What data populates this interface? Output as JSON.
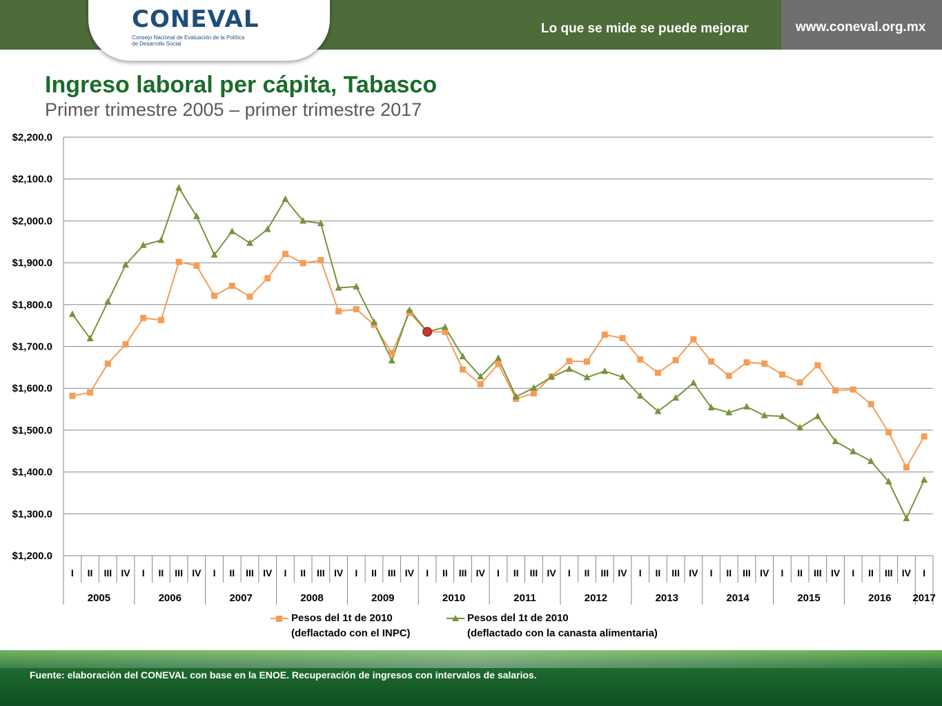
{
  "header": {
    "logo_text": "CONEVAL",
    "logo_subtitle": "Consejo Nacional de Evaluación de la Política de Desarrollo Social",
    "tagline": "Lo que se mide se puede mejorar",
    "url": "www.coneval.org.mx",
    "colors": {
      "bar": "#4e6b3a",
      "bar_right": "#6f6f6f",
      "logo": "#1f4e79"
    }
  },
  "title": "Ingreso laboral per cápita, Tabasco",
  "subtitle": "Primer trimestre 2005 – primer trimestre 2017",
  "footer": {
    "source": "Fuente: elaboración del CONEVAL con base en la ENOE. Recuperación de ingresos con intervalos de salarios."
  },
  "chart_data": {
    "type": "line",
    "ylim": [
      1200,
      2200
    ],
    "y_ticks": [
      "$1,200.0",
      "$1,300.0",
      "$1,400.0",
      "$1,500.0",
      "$1,600.0",
      "$1,700.0",
      "$1,800.0",
      "$1,900.0",
      "$2,000.0",
      "$2,100.0",
      "$2,200.0"
    ],
    "grid": true,
    "legend_position": "bottom",
    "quarters": [
      "I",
      "II",
      "III",
      "IV",
      "I",
      "II",
      "III",
      "IV",
      "I",
      "II",
      "III",
      "IV",
      "I",
      "II",
      "III",
      "IV",
      "I",
      "II",
      "III",
      "IV",
      "I",
      "II",
      "III",
      "IV",
      "I",
      "II",
      "III",
      "IV",
      "I",
      "II",
      "III",
      "IV",
      "I",
      "II",
      "III",
      "IV",
      "I",
      "II",
      "III",
      "IV",
      "I",
      "II",
      "III",
      "IV",
      "I",
      "II",
      "III",
      "IV",
      "I"
    ],
    "years": [
      "2005",
      "2006",
      "2007",
      "2008",
      "2009",
      "2010",
      "2011",
      "2012",
      "2013",
      "2014",
      "2015",
      "2016",
      "2017"
    ],
    "highlight": {
      "index": 20,
      "color": "#c0392b"
    },
    "series": [
      {
        "name_line1": "Pesos del 1t de 2010",
        "name_line2": "(deflactado con el INPC)",
        "color": "#f59d56",
        "marker": "square",
        "values": [
          1582,
          1590,
          1659,
          1705,
          1768,
          1763,
          1902,
          1893,
          1821,
          1845,
          1819,
          1863,
          1921,
          1899,
          1906,
          1784,
          1789,
          1752,
          1684,
          1781,
          1735,
          1735,
          1645,
          1610,
          1658,
          1575,
          1588,
          1628,
          1665,
          1664,
          1728,
          1720,
          1669,
          1637,
          1667,
          1717,
          1664,
          1630,
          1662,
          1659,
          1633,
          1614,
          1655,
          1595,
          1597,
          1562,
          1495,
          1411,
          1485
        ]
      },
      {
        "name_line1": "Pesos del 1t de 2010",
        "name_line2": "(deflactado con la canasta alimentaria)",
        "color": "#77933c",
        "marker": "triangle",
        "values": [
          1777,
          1719,
          1807,
          1895,
          1942,
          1954,
          2079,
          2011,
          1919,
          1975,
          1947,
          1980,
          2052,
          2000,
          1994,
          1840,
          1843,
          1758,
          1666,
          1787,
          1735,
          1746,
          1676,
          1628,
          1672,
          1580,
          1601,
          1627,
          1646,
          1626,
          1641,
          1627,
          1582,
          1545,
          1577,
          1613,
          1554,
          1542,
          1556,
          1535,
          1533,
          1506,
          1533,
          1473,
          1449,
          1426,
          1377,
          1289,
          1381
        ]
      }
    ]
  }
}
